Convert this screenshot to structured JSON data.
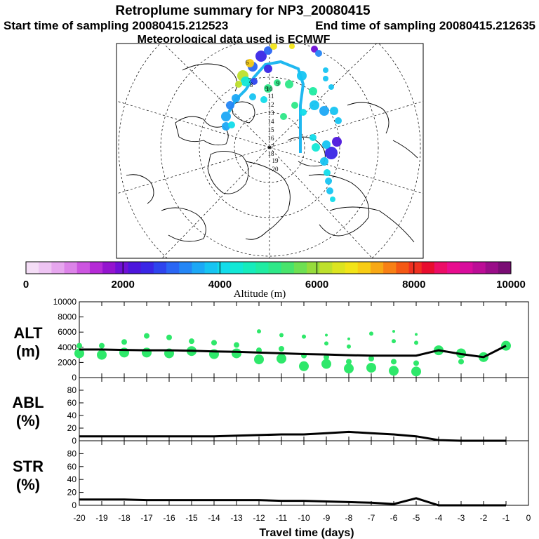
{
  "header": {
    "title": "Retroplume summary for NP3_20080415",
    "start_label": "Start time of sampling 20080415.212523",
    "end_label": "End time of sampling 20080415.212635",
    "met_label": "Meteorological data used is ECMWF"
  },
  "colorbar": {
    "label": "Altitude (m)",
    "min": 0,
    "max": 10000,
    "ticks": [
      0,
      2000,
      4000,
      6000,
      8000,
      10000
    ],
    "colors": [
      "#f4ddf6",
      "#eec4f3",
      "#e6a6ee",
      "#dc83e8",
      "#cc55e0",
      "#b52ad6",
      "#9414cf",
      "#7010d6",
      "#4d16dc",
      "#3a26e6",
      "#2e44ee",
      "#2a66f4",
      "#2486f6",
      "#1ca8f6",
      "#16c4f2",
      "#12dcea",
      "#12e8d6",
      "#16ecbc",
      "#20eca2",
      "#2ee888",
      "#48e46c",
      "#6ee052",
      "#96dc3c",
      "#bee02c",
      "#dce420",
      "#f2e418",
      "#f8cc14",
      "#f8a814",
      "#f88014",
      "#f45814",
      "#f03020",
      "#e80c2e",
      "#ec0c66",
      "#e80c8e",
      "#d80c9c",
      "#bc0c96",
      "#9a0c88",
      "#7a0c74"
    ]
  },
  "map": {
    "day_labels": [
      "5",
      "6",
      "7",
      "8",
      "9",
      "10",
      "11",
      "12",
      "13",
      "14",
      "15",
      "16",
      "17",
      "18",
      "19",
      "20"
    ]
  },
  "chart_data": [
    {
      "type": "line",
      "name": "ALT",
      "ylabel": "ALT (m)",
      "ylabel_line1": "ALT",
      "ylabel_line2": "(m)",
      "ylim": [
        0,
        10000
      ],
      "yticks": [
        0,
        2000,
        4000,
        6000,
        8000,
        10000
      ],
      "x": [
        -20,
        -19,
        -18,
        -17,
        -16,
        -15,
        -14,
        -13,
        -12,
        -11,
        -10,
        -9,
        -8,
        -7,
        -6,
        -5,
        -4,
        -3,
        -2,
        -1
      ],
      "series": [
        {
          "name": "mean altitude",
          "values": [
            3700,
            3700,
            3650,
            3600,
            3600,
            3550,
            3450,
            3400,
            3300,
            3200,
            3100,
            3050,
            2950,
            2900,
            2900,
            2900,
            3600,
            3100,
            2700,
            4200
          ]
        }
      ],
      "clusters": [
        {
          "x": -20,
          "alt": [
            3200,
            4200
          ]
        },
        {
          "x": -19,
          "alt": [
            3000,
            4200
          ]
        },
        {
          "x": -18,
          "alt": [
            3300,
            4700
          ]
        },
        {
          "x": -17,
          "alt": [
            3300,
            5500
          ]
        },
        {
          "x": -16,
          "alt": [
            3200,
            5300
          ]
        },
        {
          "x": -15,
          "alt": [
            3500,
            4800
          ]
        },
        {
          "x": -14,
          "alt": [
            3100,
            4600
          ]
        },
        {
          "x": -13,
          "alt": [
            3200,
            4300
          ]
        },
        {
          "x": -12,
          "alt": [
            2400,
            3600,
            6100
          ]
        },
        {
          "x": -11,
          "alt": [
            2500,
            3800,
            5600
          ]
        },
        {
          "x": -10,
          "alt": [
            1500,
            2900,
            5400
          ]
        },
        {
          "x": -9,
          "alt": [
            1800,
            2700,
            4500,
            5600
          ]
        },
        {
          "x": -8,
          "alt": [
            1200,
            2100,
            4100,
            5100
          ]
        },
        {
          "x": -7,
          "alt": [
            1300,
            2500,
            5800
          ]
        },
        {
          "x": -6,
          "alt": [
            900,
            2100,
            4800,
            6100
          ]
        },
        {
          "x": -5,
          "alt": [
            800,
            1900,
            4600,
            5700
          ]
        },
        {
          "x": -4,
          "alt": [
            3600
          ]
        },
        {
          "x": -3,
          "alt": [
            3200,
            2100
          ]
        },
        {
          "x": -2,
          "alt": [
            2700
          ]
        },
        {
          "x": -1,
          "alt": [
            4200
          ]
        }
      ]
    },
    {
      "type": "line",
      "name": "ABL",
      "ylabel": "ABL (%)",
      "ylabel_line1": "ABL",
      "ylabel_line2": "(%)",
      "ylim": [
        0,
        100
      ],
      "yticks": [
        0,
        20,
        40,
        60,
        80
      ],
      "x": [
        -20,
        -19,
        -18,
        -17,
        -16,
        -15,
        -14,
        -13,
        -12,
        -11,
        -10,
        -9,
        -8,
        -7,
        -6,
        -5,
        -4,
        -3,
        -2,
        -1
      ],
      "series": [
        {
          "name": "fraction in ABL",
          "values": [
            7,
            7,
            7,
            7,
            7,
            7,
            7,
            8,
            9,
            10,
            10,
            12,
            14,
            12,
            10,
            7,
            1,
            0,
            0,
            0
          ]
        }
      ]
    },
    {
      "type": "line",
      "name": "STR",
      "ylabel": "STR (%)",
      "ylabel_line1": "STR",
      "ylabel_line2": "(%)",
      "ylim": [
        0,
        100
      ],
      "yticks": [
        0,
        20,
        40,
        60,
        80
      ],
      "x": [
        -20,
        -19,
        -18,
        -17,
        -16,
        -15,
        -14,
        -13,
        -12,
        -11,
        -10,
        -9,
        -8,
        -7,
        -6,
        -5,
        -4,
        -3,
        -2,
        -1
      ],
      "xlabel": "Travel time (days)",
      "xlim": [
        -20,
        0
      ],
      "xticks": [
        -20,
        -19,
        -18,
        -17,
        -16,
        -15,
        -14,
        -13,
        -12,
        -11,
        -10,
        -9,
        -8,
        -7,
        -6,
        -5,
        -4,
        -3,
        -2,
        -1,
        0
      ],
      "series": [
        {
          "name": "fraction in stratosphere",
          "values": [
            9,
            9,
            9,
            8,
            8,
            8,
            8,
            8,
            8,
            7,
            7,
            6,
            5,
            4,
            2,
            11,
            0,
            0,
            0,
            0
          ]
        }
      ]
    }
  ]
}
